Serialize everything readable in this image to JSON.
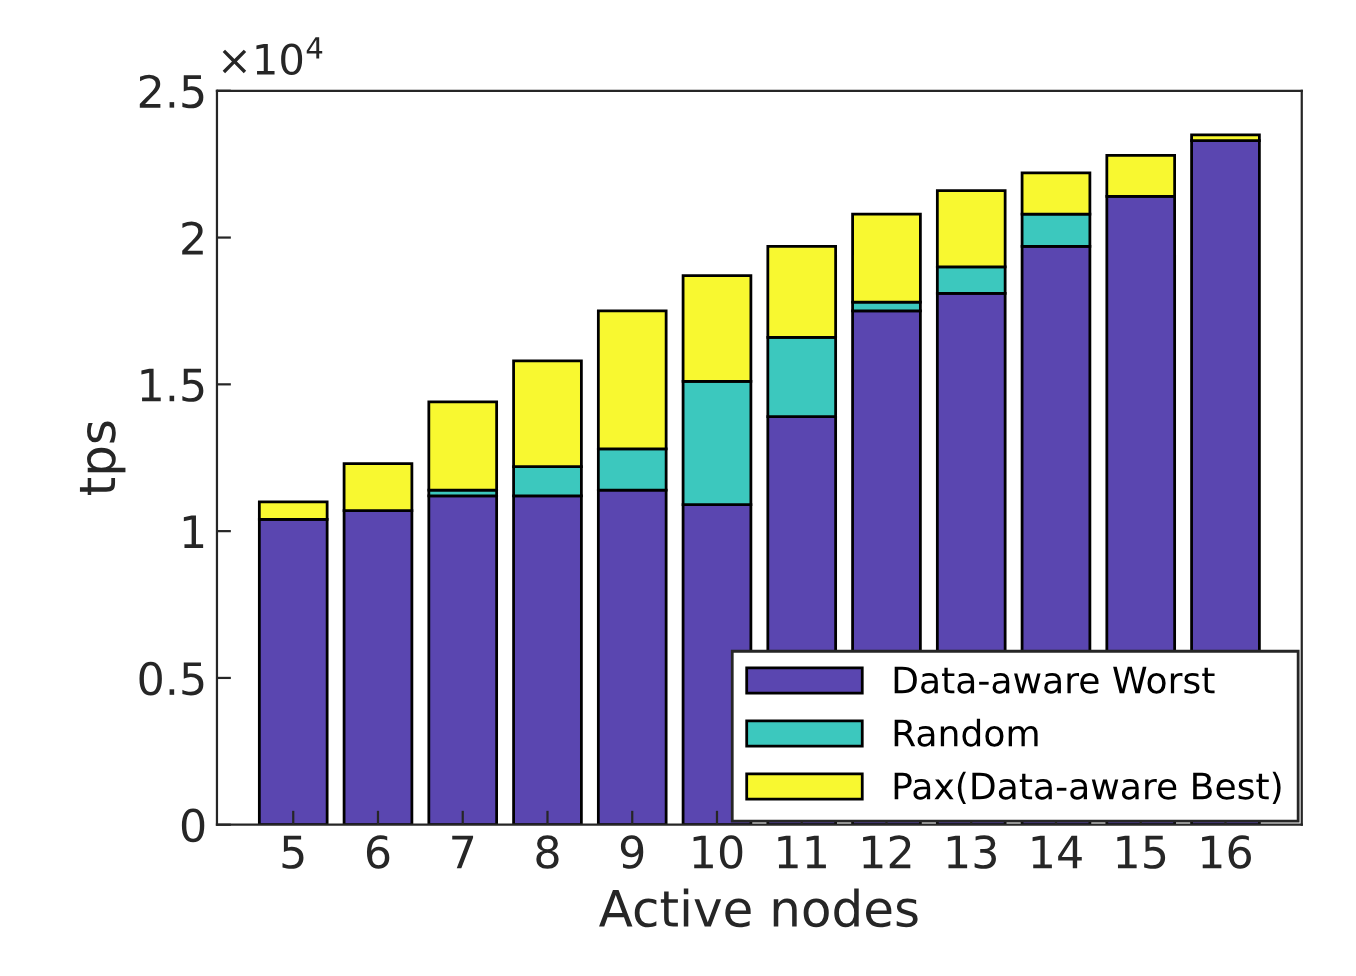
{
  "chart_data": {
    "type": "bar",
    "stacked": true,
    "xlabel": "Active nodes",
    "ylabel": "tps",
    "categories": [
      "5",
      "6",
      "7",
      "8",
      "9",
      "10",
      "11",
      "12",
      "13",
      "14",
      "15",
      "16"
    ],
    "series": [
      {
        "name": "Data-aware Worst",
        "color": "#5a46b0",
        "values": [
          1.04,
          1.07,
          1.12,
          1.12,
          1.14,
          1.09,
          1.39,
          1.75,
          1.81,
          1.97,
          2.14,
          2.33
        ]
      },
      {
        "name": "Random",
        "color": "#3cc8be",
        "values": [
          0,
          0,
          0.02,
          0.1,
          0.14,
          0.42,
          0.27,
          0.03,
          0.09,
          0.11,
          0,
          0
        ]
      },
      {
        "name": "Pax(Data-aware Best)",
        "color": "#f8f830",
        "values": [
          0.06,
          0.16,
          0.3,
          0.36,
          0.47,
          0.36,
          0.31,
          0.3,
          0.26,
          0.14,
          0.14,
          0.02
        ]
      }
    ],
    "ylim": [
      0,
      2.5
    ],
    "yticks": [
      0,
      0.5,
      1,
      1.5,
      2,
      2.5
    ],
    "annotations": [
      "×10$^{4}$"
    ],
    "legend": "bottom right",
    "grid": false
  }
}
